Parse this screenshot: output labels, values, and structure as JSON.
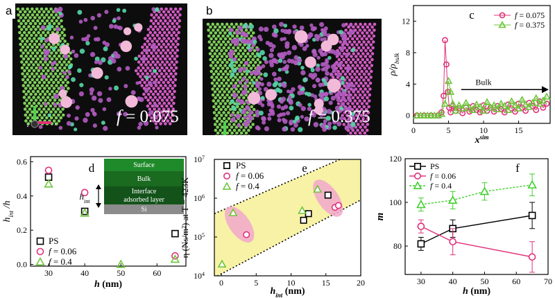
{
  "figure": {
    "panels": {
      "a": {
        "letter": "a",
        "f_symbol": "f",
        "f_value": " = 0.075"
      },
      "b": {
        "letter": "b",
        "f_symbol": "f",
        "f_value": " = 0.375"
      }
    },
    "axis_gizmo": {
      "z": "z",
      "x": "x"
    }
  },
  "chart_data": [
    {
      "id": "c",
      "panel_letter": "c",
      "type": "line",
      "xlabel": "x",
      "xlabel_sup": "sim",
      "ylabel": "ρ/ρ",
      "ylabel_sub": "bulk",
      "xlim": [
        0,
        19.5
      ],
      "ylim": [
        -1,
        14
      ],
      "xticks": [
        "0",
        "5",
        "10",
        "15"
      ],
      "yticks": [
        "0",
        "4",
        "8",
        "12"
      ],
      "annotation": "Bulk",
      "colors": {
        "f0.075": "#e0307a",
        "f0.375": "#6dc53a"
      },
      "series": [
        {
          "name": "f = 0.075",
          "marker": "circle",
          "x": [
            0.5,
            1.5,
            2.5,
            3.5,
            4.0,
            4.3,
            4.5,
            4.7,
            4.9,
            5.1,
            5.3,
            5.6,
            6.0,
            6.5,
            7.0,
            7.5,
            8.0,
            8.5,
            9.0,
            9.5,
            10.0,
            10.5,
            11.0,
            11.5,
            12.0,
            12.5,
            13.0,
            13.5,
            14.0,
            14.5,
            15.0,
            15.5,
            16.0,
            16.5,
            17.0,
            17.5,
            18.0,
            18.5,
            19.0
          ],
          "y": [
            0,
            0,
            0,
            0,
            0.4,
            2.5,
            9.6,
            6.5,
            3.0,
            1.0,
            0.4,
            1.2,
            0.6,
            0.9,
            0.3,
            1.0,
            0.5,
            1.2,
            0.7,
            0.4,
            1.3,
            0.6,
            1.0,
            0.5,
            1.2,
            0.8,
            0.4,
            1.4,
            0.9,
            0.5,
            1.5,
            1.0,
            0.6,
            1.6,
            1.2,
            0.7,
            1.8,
            1.0,
            1.5
          ]
        },
        {
          "name": "f = 0.375",
          "marker": "triangle",
          "x": [
            0.5,
            1.0,
            1.5,
            2.0,
            2.5,
            3.0,
            3.5,
            4.0,
            4.5,
            5.0,
            5.3,
            5.6,
            6.0,
            6.5,
            7.0,
            7.5,
            8.0,
            8.5,
            9.0,
            9.5,
            10.0,
            10.5,
            11.0,
            11.5,
            12.0,
            12.5,
            13.0,
            13.5,
            14.0,
            14.5,
            15.0,
            15.5,
            16.0,
            16.5,
            17.0,
            17.5,
            18.0,
            18.5,
            19.0
          ],
          "y": [
            0,
            0,
            0,
            0,
            0,
            0,
            0,
            0.2,
            1.5,
            4.4,
            3.0,
            1.5,
            0.6,
            1.3,
            0.9,
            1.6,
            1.0,
            0.7,
            1.4,
            1.1,
            0.6,
            1.7,
            1.0,
            1.3,
            0.8,
            1.5,
            1.2,
            0.7,
            1.8,
            1.3,
            0.9,
            2.0,
            1.4,
            1.1,
            1.6,
            2.2,
            1.5,
            1.9,
            2.4
          ]
        }
      ]
    },
    {
      "id": "d",
      "panel_letter": "d",
      "type": "scatter",
      "xlabel": "h",
      "xlabel_unit": " (nm)",
      "ylabel": "h",
      "ylabel_sub": "int",
      "ylabel_tail": " /h",
      "xlim": [
        25,
        68
      ],
      "ylim": [
        -0.01,
        0.63
      ],
      "xticks": [
        "30",
        "40",
        "50",
        "60"
      ],
      "yticks": [
        "0.0",
        "0.2",
        "0.4",
        "0.6"
      ],
      "colors": {
        "PS": "#000000",
        "f0.06": "#e0307a",
        "f0.4": "#6dc53a"
      },
      "series": [
        {
          "name": "PS",
          "marker": "square",
          "x": [
            30,
            40,
            65
          ],
          "y": [
            0.51,
            0.31,
            0.18
          ]
        },
        {
          "name": "f = 0.06",
          "marker": "circle",
          "x": [
            30,
            40,
            65
          ],
          "y": [
            0.55,
            0.42,
            0.05
          ]
        },
        {
          "name": "f = 0.4",
          "marker": "triangle",
          "x": [
            30,
            40,
            50,
            65
          ],
          "y": [
            0.47,
            0.3,
            0.0,
            0.03
          ]
        }
      ],
      "inset": {
        "layers": [
          "Surface",
          "Bulk",
          "Interface",
          "adsorbed layer",
          "Si"
        ],
        "h_label": "h",
        "h_sub": "int"
      }
    },
    {
      "id": "e",
      "panel_letter": "e",
      "type": "scatter",
      "xlabel": "h",
      "xlabel_sub": "int",
      "xlabel_unit": " (nm)",
      "ylabel": "η (Ns/m²) at T = 423K",
      "xlim": [
        -1,
        20
      ],
      "ylog_range": [
        4,
        7
      ],
      "xticks": [
        "0",
        "5",
        "10",
        "15",
        "20"
      ],
      "yticks": [
        "10",
        "10",
        "10",
        "10"
      ],
      "ytick_sups": [
        "4",
        "5",
        "6",
        "7"
      ],
      "colors": {
        "PS": "#000000",
        "f0.06": "#e0307a",
        "f0.4": "#6dc53a",
        "band": "#f7f2a6",
        "ellipse": "#f2a8cc"
      },
      "series": [
        {
          "name": "PS",
          "marker": "square",
          "x": [
            11.8,
            12.5,
            15.3
          ],
          "y": [
            270000,
            400000,
            1200000
          ]
        },
        {
          "name": "f = 0.06",
          "marker": "circle",
          "x": [
            3.6,
            16.3,
            16.8
          ],
          "y": [
            115000,
            580000,
            650000
          ]
        },
        {
          "name": "f = 0.4",
          "marker": "triangle",
          "x": [
            0.1,
            1.7,
            11.6,
            13.8
          ],
          "y": [
            20000,
            420000,
            480000,
            1700000
          ]
        }
      ]
    },
    {
      "id": "f",
      "panel_letter": "f",
      "type": "line",
      "xlabel": "h",
      "xlabel_unit": " (nm)",
      "ylabel": "m",
      "xlim": [
        25,
        70
      ],
      "ylim": [
        67,
        120
      ],
      "xticks": [
        "30",
        "40",
        "50",
        "60",
        "70"
      ],
      "yticks": [
        "80",
        "100",
        "120"
      ],
      "colors": {
        "PS": "#000000",
        "f0.06": "#e0307a",
        "f0.4": "#3dcf2a"
      },
      "series": [
        {
          "name": "PS",
          "marker": "square",
          "x": [
            30,
            40,
            65
          ],
          "y": [
            81,
            88,
            94
          ],
          "err": [
            3,
            4,
            6
          ]
        },
        {
          "name": "f = 0.06",
          "marker": "circle",
          "x": [
            30,
            40,
            65
          ],
          "y": [
            89,
            82,
            75
          ],
          "err": [
            3,
            6,
            7
          ]
        },
        {
          "name": "f = 0.4",
          "marker": "triangle",
          "x": [
            30,
            40,
            50,
            65
          ],
          "y": [
            99,
            101,
            105,
            108
          ],
          "err": [
            3,
            4,
            4,
            5
          ]
        }
      ]
    }
  ]
}
